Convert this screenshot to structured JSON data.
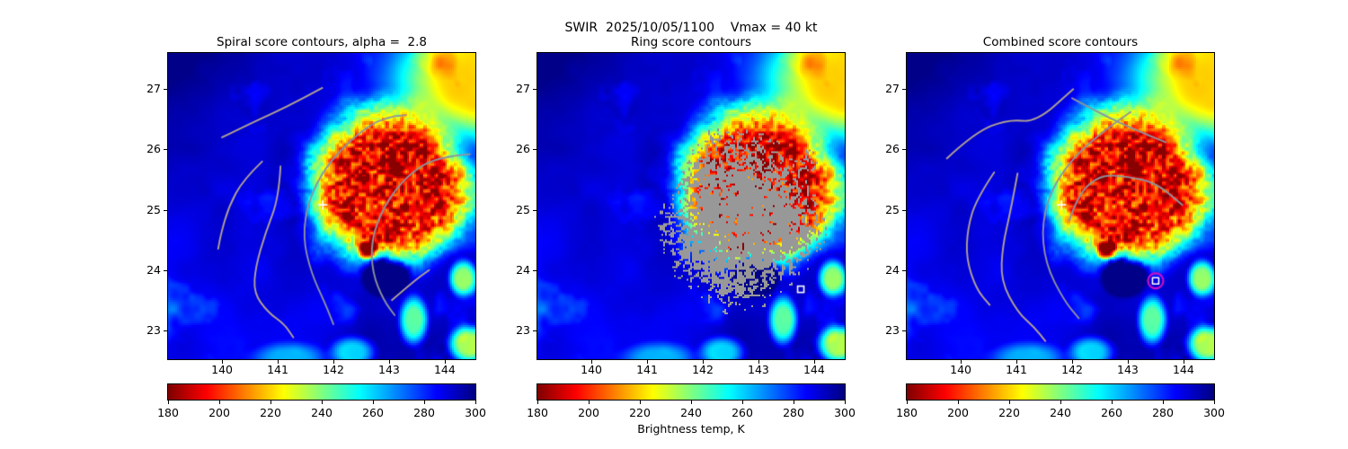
{
  "figure": {
    "suptitle": "SWIR  2025/10/05/1100    Vmax = 40 kt",
    "background_color": "#ffffff",
    "text_color": "#000000"
  },
  "chart_data": {
    "type": "heatmap",
    "description": "Satellite SWIR brightness temperature maps of a tropical cyclone, three panels sharing axes and a jet_r colormap, with score-contour overlays",
    "x": {
      "ticks": [
        "140",
        "141",
        "142",
        "143",
        "144"
      ],
      "tick_values": [
        140,
        141,
        142,
        143,
        144
      ],
      "range": [
        139.03,
        144.55
      ]
    },
    "y": {
      "ticks": [
        "27",
        "26",
        "25",
        "24",
        "23"
      ],
      "tick_values": [
        27,
        26,
        25,
        24,
        23
      ],
      "range": [
        22.52,
        27.6
      ]
    },
    "grid": false,
    "legend": null,
    "colorbar": {
      "label": "Brightness temp, K",
      "ticks": [
        "180",
        "200",
        "220",
        "240",
        "260",
        "280",
        "300"
      ],
      "tick_values": [
        180,
        200,
        220,
        240,
        260,
        280,
        300
      ],
      "range": [
        180,
        300
      ],
      "colormap": "jet_r"
    },
    "colormap_jet_stops": [
      [
        0.0,
        0,
        0,
        131
      ],
      [
        0.125,
        0,
        0,
        255
      ],
      [
        0.375,
        0,
        255,
        255
      ],
      [
        0.625,
        255,
        255,
        0
      ],
      [
        0.875,
        255,
        0,
        0
      ],
      [
        1.0,
        128,
        0,
        0
      ]
    ],
    "contour_colors": {
      "gray": "#8d939d",
      "tan": "#b2a392"
    },
    "field": {
      "background_K": 289,
      "noise_amplitude_K": 9,
      "dark_corner": {
        "lon": 139.2,
        "lat": 27.4,
        "rx": 1.6,
        "ry": 1.2,
        "raise_K": 8
      },
      "cold_core": {
        "lon": 143.0,
        "lat": 25.4,
        "rx": 1.8,
        "ry": 1.45,
        "depth_K": 96
      },
      "anvil": {
        "lon": 144.9,
        "lat": 27.2,
        "rx": 1.9,
        "ry": 1.15,
        "depth_K": 70
      },
      "warm_notch": {
        "lon": 142.95,
        "lat": 23.95,
        "rx": 0.55,
        "ry": 0.5,
        "raise_K": 45
      },
      "cool_patches": [
        {
          "lon": 143.45,
          "lat": 23.15,
          "rx": 0.35,
          "ry": 0.55,
          "depth_K": 48
        },
        {
          "lon": 144.35,
          "lat": 23.85,
          "rx": 0.35,
          "ry": 0.42,
          "depth_K": 55
        },
        {
          "lon": 144.45,
          "lat": 22.75,
          "rx": 0.5,
          "ry": 0.42,
          "depth_K": 58
        },
        {
          "lon": 142.35,
          "lat": 22.62,
          "rx": 0.55,
          "ry": 0.35,
          "depth_K": 34
        },
        {
          "lon": 142.62,
          "lat": 24.33,
          "rx": 0.24,
          "ry": 0.2,
          "depth_K": 55
        },
        {
          "lon": 141.2,
          "lat": 22.52,
          "rx": 0.9,
          "ry": 0.35,
          "depth_K": 22
        }
      ],
      "ring_region": {
        "lon": 142.72,
        "lat": 24.7,
        "rx": 1.5,
        "ry": 1.72,
        "color": "#989898"
      }
    },
    "panels": [
      {
        "id": "spiral",
        "title": "Spiral score contours, alpha =  2.8",
        "ring_overlay": false,
        "contours_gray": [
          [
            [
              143.3,
              26.57
            ],
            [
              142.9,
              26.55
            ],
            [
              142.35,
              26.2
            ],
            [
              141.85,
              25.7
            ],
            [
              141.55,
              25.15
            ],
            [
              141.45,
              24.55
            ],
            [
              141.6,
              23.95
            ],
            [
              141.85,
              23.45
            ],
            [
              142.0,
              23.1
            ]
          ],
          [
            [
              144.45,
              25.92
            ],
            [
              143.85,
              25.88
            ],
            [
              143.3,
              25.55
            ],
            [
              142.9,
              25.05
            ],
            [
              142.68,
              24.5
            ],
            [
              142.7,
              23.95
            ],
            [
              142.9,
              23.5
            ],
            [
              143.1,
              23.25
            ]
          ]
        ],
        "contours_tan": [
          [
            [
              140.0,
              26.2
            ],
            [
              140.55,
              26.45
            ],
            [
              141.15,
              26.7
            ],
            [
              141.8,
              27.02
            ]
          ],
          [
            [
              140.72,
              25.8
            ],
            [
              140.38,
              25.5
            ],
            [
              140.12,
              25.05
            ],
            [
              139.98,
              24.6
            ],
            [
              139.93,
              24.35
            ]
          ],
          [
            [
              141.05,
              25.72
            ],
            [
              141.02,
              25.2
            ],
            [
              140.78,
              24.62
            ],
            [
              140.6,
              24.05
            ],
            [
              140.57,
              23.62
            ],
            [
              140.82,
              23.3
            ],
            [
              141.12,
              23.1
            ],
            [
              141.28,
              22.88
            ]
          ],
          [
            [
              143.05,
              23.5
            ],
            [
              143.45,
              23.82
            ],
            [
              143.72,
              24.0
            ]
          ]
        ],
        "markers": [
          {
            "type": "plus",
            "lon": 141.81,
            "lat": 25.08,
            "color": "#ffffff"
          }
        ]
      },
      {
        "id": "ring",
        "title": "Ring score contours",
        "ring_overlay": true,
        "contours_gray": [],
        "contours_tan": [],
        "markers": [
          {
            "type": "square",
            "lon": 143.76,
            "lat": 23.68,
            "color": "#ffffff"
          }
        ]
      },
      {
        "id": "combined",
        "title": "Combined score contours",
        "ring_overlay": false,
        "contours_gray": [
          [
            [
              142.0,
              26.85
            ],
            [
              142.6,
              26.55
            ],
            [
              143.2,
              26.3
            ],
            [
              143.68,
              26.12
            ]
          ],
          [
            [
              143.05,
              26.62
            ],
            [
              142.35,
              26.18
            ],
            [
              141.7,
              25.5
            ],
            [
              141.45,
              24.8
            ],
            [
              141.52,
              24.1
            ],
            [
              141.85,
              23.5
            ],
            [
              142.12,
              23.2
            ]
          ],
          [
            [
              141.95,
              24.82
            ],
            [
              142.1,
              25.25
            ],
            [
              142.5,
              25.58
            ],
            [
              143.0,
              25.55
            ],
            [
              143.5,
              25.45
            ],
            [
              143.98,
              25.08
            ]
          ]
        ],
        "contours_tan": [
          [
            [
              139.75,
              25.85
            ],
            [
              140.25,
              26.28
            ],
            [
              140.85,
              26.5
            ],
            [
              141.35,
              26.45
            ],
            [
              142.02,
              27.0
            ]
          ],
          [
            [
              140.6,
              25.62
            ],
            [
              140.28,
              25.18
            ],
            [
              140.12,
              24.68
            ],
            [
              140.1,
              24.18
            ],
            [
              140.28,
              23.68
            ],
            [
              140.52,
              23.42
            ]
          ],
          [
            [
              141.02,
              25.6
            ],
            [
              140.9,
              25.0
            ],
            [
              140.75,
              24.4
            ],
            [
              140.72,
              23.82
            ],
            [
              141.02,
              23.3
            ],
            [
              141.32,
              23.05
            ],
            [
              141.52,
              22.82
            ]
          ]
        ],
        "markers": [
          {
            "type": "plus",
            "lon": 141.81,
            "lat": 25.08,
            "color": "#ffffff"
          },
          {
            "type": "circle",
            "lon": 143.5,
            "lat": 23.82,
            "color": "#c410c4"
          },
          {
            "type": "square",
            "lon": 143.5,
            "lat": 23.82,
            "color": "#ffffff"
          }
        ]
      }
    ]
  }
}
